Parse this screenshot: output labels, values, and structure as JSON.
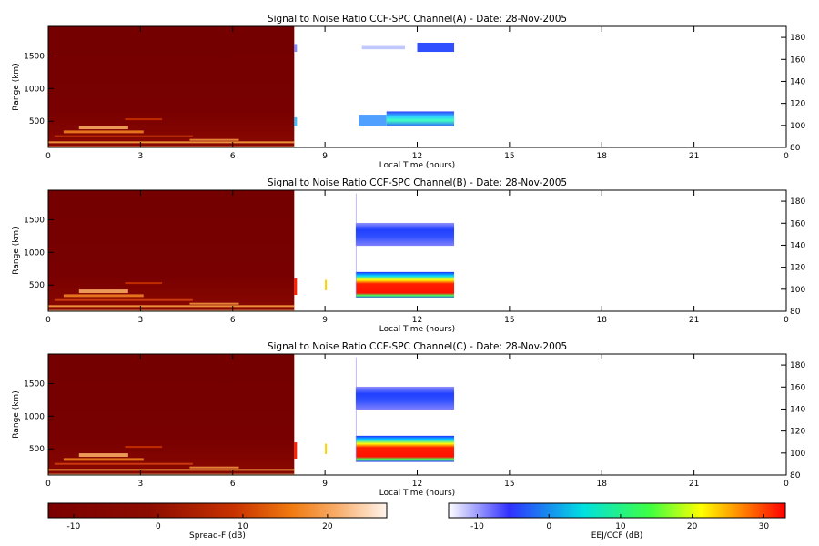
{
  "chart_data": {
    "type": "heatmap",
    "panels": [
      {
        "title": "Signal to Noise Ratio CCF-SPC Channel(A) - Date: 28-Nov-2005",
        "intensity": "weak"
      },
      {
        "title": "Signal to Noise Ratio CCF-SPC Channel(B) - Date: 28-Nov-2005",
        "intensity": "strong"
      },
      {
        "title": "Signal to Noise Ratio CCF-SPC Channel(C) - Date: 28-Nov-2005",
        "intensity": "strong"
      }
    ],
    "xlabel": "Local Time (hours)",
    "ylabel_left": "Range (km)",
    "xlim": [
      0,
      24
    ],
    "x_ticks": [
      "0",
      "3",
      "6",
      "9",
      "12",
      "15",
      "18",
      "21",
      "0"
    ],
    "ylim_left": [
      100,
      1950
    ],
    "y_ticks_left": [
      500,
      1000,
      1500
    ],
    "ylim_right": [
      80,
      190
    ],
    "y_ticks_right": [
      80,
      100,
      120,
      140,
      160,
      180
    ],
    "spreadf_region": {
      "x": [
        0,
        8
      ],
      "description": "Spread-F night-time echoes"
    },
    "eej_regions": [
      {
        "band": "lower",
        "x": [
          10,
          13.2
        ],
        "range_km": [
          300,
          700
        ],
        "alt_km": [
          95,
          120
        ]
      },
      {
        "band": "upper",
        "x": [
          10,
          13.2
        ],
        "range_km": [
          1100,
          1450
        ],
        "alt_km": [
          140,
          160
        ]
      }
    ],
    "colorbars": [
      {
        "label": "Spread-F (dB)",
        "ticks": [
          -10,
          0,
          10,
          20
        ],
        "range": [
          -13,
          27
        ],
        "colors": [
          "#7a0000",
          "#8c0c00",
          "#c83200",
          "#f07a10",
          "#f8b070",
          "#fff4ec"
        ]
      },
      {
        "label": "EEJ/CCF (dB)",
        "ticks": [
          -10,
          0,
          10,
          20,
          30
        ],
        "range": [
          -14,
          33
        ],
        "colors": [
          "#ffffff",
          "#3030ff",
          "#00e0e0",
          "#40ff40",
          "#ffff00",
          "#ff0000"
        ]
      }
    ]
  }
}
